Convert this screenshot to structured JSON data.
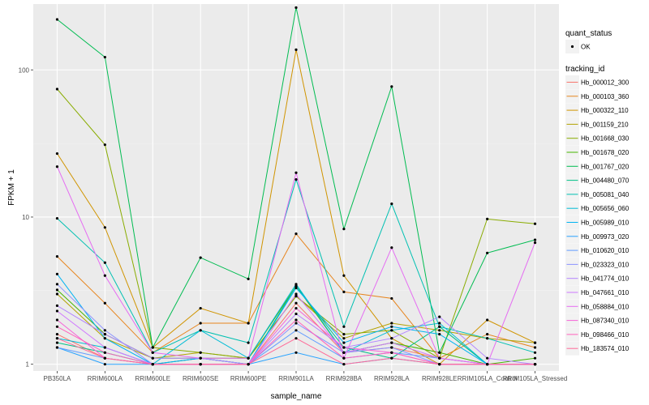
{
  "chart_data": {
    "type": "line",
    "xlabel": "sample_name",
    "ylabel": "FPKM + 1",
    "y_scale": "log10",
    "ylim": [
      0.9,
      280
    ],
    "y_ticks": [
      1,
      10,
      100
    ],
    "y_tick_labels": [
      "1",
      "10",
      "100"
    ],
    "categories": [
      "PB350LA",
      "RRIM600LA",
      "RRIM600LE",
      "RRIM600SE",
      "RRIM600PE",
      "RRIM901LA",
      "RRIM928BA",
      "RRIM928LA",
      "RRIM928LE",
      "RRIM105LA_Control",
      "RRIM105LA_Stressed"
    ],
    "grid": true,
    "background_color": "#ebebeb",
    "legend_position": "right",
    "legend_shape": {
      "title": "quant_status",
      "entries": [
        "OK"
      ]
    },
    "legend_color_title": "tracking_id",
    "series": [
      {
        "name": "Hb_000012_300",
        "color": "#F8766D",
        "values": [
          1.6,
          1.1,
          1.0,
          1.1,
          1.0,
          2.6,
          1.2,
          1.3,
          1.1,
          1.0,
          1.0
        ]
      },
      {
        "name": "Hb_000103_360",
        "color": "#E7851E",
        "values": [
          5.4,
          2.6,
          1.2,
          1.9,
          1.9,
          7.7,
          3.1,
          2.8,
          1.1,
          1.6,
          1.3
        ]
      },
      {
        "name": "Hb_000322_110",
        "color": "#D09400",
        "values": [
          27.0,
          8.5,
          1.3,
          2.4,
          1.9,
          137.0,
          4.0,
          1.5,
          1.0,
          2.0,
          1.4
        ]
      },
      {
        "name": "Hb_001159_210",
        "color": "#B2A100",
        "values": [
          3.0,
          1.5,
          1.1,
          1.2,
          1.1,
          2.9,
          1.5,
          1.9,
          1.7,
          1.5,
          1.4
        ]
      },
      {
        "name": "Hb_001668_030",
        "color": "#89AC00",
        "values": [
          74.0,
          31.0,
          1.3,
          1.2,
          1.1,
          2.9,
          1.6,
          1.7,
          1.1,
          9.7,
          9.0
        ]
      },
      {
        "name": "Hb_001678_020",
        "color": "#45B500",
        "values": [
          3.2,
          1.6,
          1.1,
          1.1,
          1.1,
          3.4,
          1.2,
          1.4,
          1.2,
          1.0,
          1.1
        ]
      },
      {
        "name": "Hb_001767_020",
        "color": "#00BC51",
        "values": [
          220.0,
          122.0,
          1.3,
          5.3,
          3.8,
          265.0,
          8.3,
          77.0,
          1.2,
          5.7,
          7.0
        ]
      },
      {
        "name": "Hb_004480_070",
        "color": "#00C087",
        "values": [
          1.4,
          1.2,
          1.0,
          1.1,
          1.0,
          3.4,
          1.3,
          1.1,
          1.8,
          1.0,
          1.0
        ]
      },
      {
        "name": "Hb_005081_040",
        "color": "#00C0B2",
        "values": [
          9.8,
          4.9,
          1.2,
          1.7,
          1.4,
          18.0,
          1.8,
          12.3,
          1.8,
          1.5,
          1.2
        ]
      },
      {
        "name": "Hb_005656_060",
        "color": "#00BCD6",
        "values": [
          1.5,
          1.3,
          1.0,
          1.7,
          1.1,
          3.5,
          1.2,
          1.7,
          1.9,
          1.0,
          1.0
        ]
      },
      {
        "name": "Hb_005989_010",
        "color": "#00B3F2",
        "values": [
          4.1,
          1.5,
          1.0,
          1.1,
          1.0,
          3.3,
          1.4,
          1.8,
          1.6,
          1.0,
          1.0
        ]
      },
      {
        "name": "Hb_009973_020",
        "color": "#29A3FF",
        "values": [
          1.3,
          1.0,
          1.0,
          1.0,
          1.0,
          1.2,
          1.0,
          1.1,
          1.0,
          1.0,
          1.0
        ]
      },
      {
        "name": "Hb_010620_010",
        "color": "#619CFF",
        "values": [
          1.3,
          1.1,
          1.0,
          1.0,
          1.0,
          1.7,
          1.1,
          1.2,
          1.1,
          1.0,
          1.0
        ]
      },
      {
        "name": "Hb_023323_010",
        "color": "#8B93FF",
        "values": [
          3.5,
          1.7,
          1.0,
          1.0,
          1.0,
          1.9,
          1.2,
          1.3,
          1.0,
          1.0,
          1.0
        ]
      },
      {
        "name": "Hb_041774_010",
        "color": "#B385FF",
        "values": [
          2.5,
          1.6,
          1.1,
          1.1,
          1.0,
          2.2,
          1.3,
          1.5,
          2.1,
          1.1,
          1.0
        ]
      },
      {
        "name": "Hb_047661_010",
        "color": "#CF78FF",
        "values": [
          2.3,
          1.3,
          1.0,
          1.0,
          1.0,
          3.0,
          1.2,
          1.4,
          1.1,
          1.0,
          1.0
        ]
      },
      {
        "name": "Hb_058884_010",
        "color": "#E56CF2",
        "values": [
          22.0,
          4.0,
          1.2,
          1.1,
          1.1,
          20.0,
          1.1,
          6.2,
          1.1,
          1.0,
          6.7
        ]
      },
      {
        "name": "Hb_087340_010",
        "color": "#F664D8",
        "values": [
          2.0,
          1.1,
          1.0,
          1.0,
          1.0,
          2.4,
          1.3,
          1.2,
          1.0,
          1.0,
          1.0
        ]
      },
      {
        "name": "Hb_098466_010",
        "color": "#FF62BC",
        "values": [
          1.8,
          1.2,
          1.0,
          1.0,
          1.0,
          2.0,
          1.1,
          1.2,
          1.0,
          1.0,
          1.0
        ]
      },
      {
        "name": "Hb_183574_010",
        "color": "#FF6A98",
        "values": [
          1.5,
          1.1,
          1.0,
          1.0,
          1.0,
          1.5,
          1.0,
          1.1,
          1.0,
          1.0,
          1.0
        ]
      }
    ]
  }
}
